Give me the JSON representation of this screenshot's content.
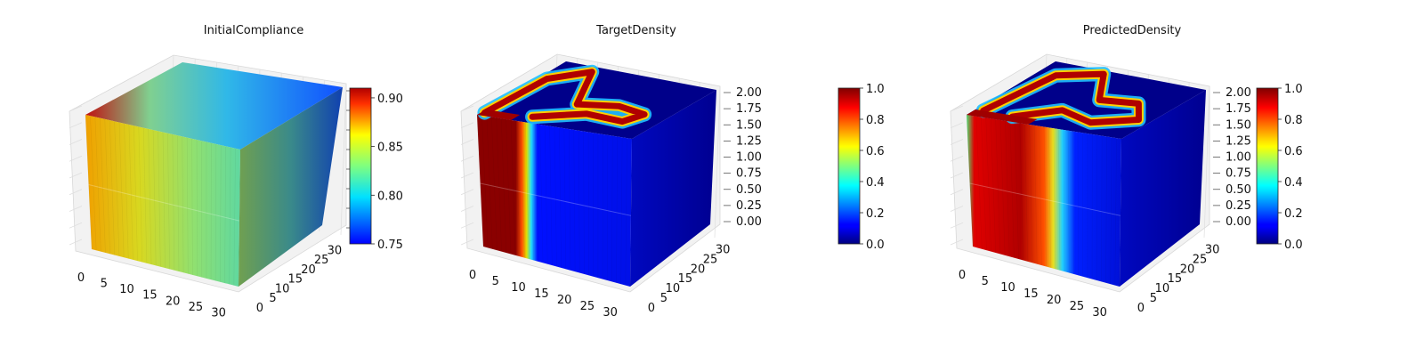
{
  "chart_data": [
    {
      "type": "voxel-3d",
      "title": "InitialCompliance",
      "x_ticks": [
        "0",
        "5",
        "10",
        "15",
        "20",
        "25",
        "30"
      ],
      "y_ticks": [
        "0",
        "5",
        "10",
        "15",
        "20",
        "25",
        "30"
      ],
      "z_ticks": [],
      "colorbar": {
        "colormap": "jet",
        "range": [
          0.75,
          0.91
        ],
        "ticks": [
          "0.75",
          "0.80",
          "0.85",
          "0.90"
        ]
      },
      "field": "compliance: high (~0.9) near x=0, low (~0.75) near x=32"
    },
    {
      "type": "voxel-3d",
      "title": "TargetDensity",
      "x_ticks": [
        "0",
        "5",
        "10",
        "15",
        "20",
        "25",
        "30"
      ],
      "y_ticks": [
        "0",
        "5",
        "10",
        "15",
        "20",
        "25",
        "30"
      ],
      "z_ticks": [
        "0.00",
        "0.25",
        "0.50",
        "0.75",
        "1.00",
        "1.25",
        "1.50",
        "1.75",
        "2.00"
      ],
      "colorbar": {
        "colormap": "jet",
        "range": [
          0.0,
          1.0
        ],
        "ticks": [
          "0.0",
          "0.2",
          "0.4",
          "0.6",
          "0.8",
          "1.0"
        ]
      },
      "field": "density 1.0 in slab x<10 and along a curved band on top; 0.0 elsewhere"
    },
    {
      "type": "voxel-3d",
      "title": "PredictedDensity",
      "x_ticks": [
        "0",
        "5",
        "10",
        "15",
        "20",
        "25",
        "30"
      ],
      "y_ticks": [
        "0",
        "5",
        "10",
        "15",
        "20",
        "25",
        "30"
      ],
      "z_ticks": [
        "0.00",
        "0.25",
        "0.50",
        "0.75",
        "1.00",
        "1.25",
        "1.50",
        "1.75",
        "2.00"
      ],
      "colorbar": {
        "colormap": "jet",
        "range": [
          0.0,
          1.0
        ],
        "ticks": [
          "0.0",
          "0.2",
          "0.4",
          "0.6",
          "0.8",
          "1.0"
        ]
      },
      "field": "density ~1.0 in slab x<20 and along a looped band on top; 0.0 elsewhere"
    }
  ]
}
